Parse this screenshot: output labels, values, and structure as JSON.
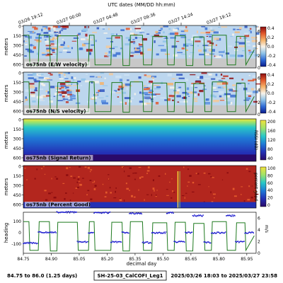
{
  "header": {
    "top_axis_label": "UTC dates (MM/DD hh:mm)"
  },
  "top_axis_ticks": [
    "03/26 19:12",
    "03/27 00:00",
    "03/27 04:48",
    "03/27 09:36",
    "03/27 14:24",
    "03/27 19:12"
  ],
  "footer": {
    "left": "84.75 to 86.0 (1.25 days)",
    "center": "SH-25-03_CalCOFI_Leg1",
    "right": "2025/03/26 18:03 to 2025/03/27 23:58"
  },
  "x_axis": {
    "label": "decimal day",
    "ticks": [
      "84.75",
      "84.90",
      "85.05",
      "85.20",
      "85.35",
      "85.50",
      "85.65",
      "85.80",
      "85.95"
    ]
  },
  "colors": {
    "speed_line": "#1f7a1f",
    "heading_dots": "#1f1fd0",
    "heading_label": "#1f1fd0",
    "speed_label": "#1f7a1f",
    "footer_purple": "#7a1f7a",
    "nodata_gray": "#c8c8c8"
  },
  "panels": [
    {
      "label": "os75nb (E/W velocity)",
      "ylabel": "meters",
      "yticks": [
        "0",
        "150",
        "300",
        "450",
        "600"
      ],
      "speed_label": "m/s",
      "speed_ticks": [
        "0",
        "2",
        "4",
        "6"
      ],
      "colorbar_ticks": [
        "0.4",
        "0.2",
        "0.0",
        "-0.2",
        "-0.4"
      ],
      "colorbar_label": ""
    },
    {
      "label": "os75nb (N/S velocity)",
      "ylabel": "meters",
      "yticks": [
        "0",
        "150",
        "300",
        "450",
        "600"
      ],
      "speed_label": "m/s",
      "speed_ticks": [
        "0",
        "2",
        "4",
        "6"
      ],
      "colorbar_ticks": [
        "0.4",
        "0.2",
        "0.0",
        "-0.2",
        "-0.4"
      ],
      "colorbar_label": ""
    },
    {
      "label": "os75nb (Signal Return)",
      "ylabel": "meters",
      "yticks": [
        "0",
        "150",
        "300",
        "450",
        "600"
      ],
      "speed_label": "",
      "speed_ticks": [],
      "colorbar_ticks": [
        "200",
        "160",
        "120",
        "80",
        "40"
      ],
      "colorbar_label": "RSSI (dB)"
    },
    {
      "label": "os75nb (Percent Good)",
      "ylabel": "meters",
      "yticks": [
        "0",
        "150",
        "300",
        "450",
        "600"
      ],
      "speed_label": "",
      "speed_ticks": [],
      "colorbar_ticks": [
        "100",
        "80",
        "60",
        "40",
        "20",
        "0"
      ],
      "colorbar_label": "percent good"
    }
  ],
  "heading_panel": {
    "ylabel": "heading",
    "yticks": [
      "100",
      "0",
      "-100"
    ],
    "speed_label": "m/s",
    "speed_ticks": [
      "0",
      "2",
      "4",
      "6"
    ]
  },
  "chart_data": {
    "type": "line",
    "title": "",
    "xlabel": "decimal day",
    "xlim": [
      84.75,
      86.0
    ],
    "ylim_speed": [
      0,
      7
    ],
    "ylim_heading": [
      -180,
      180
    ],
    "series": [
      {
        "name": "m/s",
        "x": [
          84.75,
          84.78,
          84.785,
          84.83,
          84.835,
          84.89,
          84.895,
          84.93,
          84.935,
          85.04,
          85.045,
          85.1,
          85.105,
          85.13,
          85.135,
          85.22,
          85.225,
          85.28,
          85.285,
          85.32,
          85.325,
          85.39,
          85.395,
          85.44,
          85.445,
          85.52,
          85.525,
          85.56,
          85.565,
          85.62,
          85.625,
          85.66,
          85.665,
          85.72,
          85.725,
          85.76,
          85.765,
          85.84,
          85.845,
          85.89,
          85.895,
          85.94,
          85.945,
          85.99
        ],
        "values": [
          5.4,
          5.4,
          0.5,
          0.5,
          5.4,
          5.4,
          0.4,
          0.4,
          5.3,
          5.3,
          0.5,
          0.5,
          5.4,
          5.4,
          0.5,
          0.5,
          5.3,
          5.3,
          0.4,
          0.4,
          5.4,
          5.4,
          0.5,
          0.5,
          5.2,
          5.2,
          0.5,
          0.5,
          5.3,
          5.3,
          0.4,
          0.4,
          5.1,
          5.1,
          0.5,
          0.5,
          5.4,
          5.4,
          0.5,
          0.5,
          5.2,
          5.2,
          0.5,
          3.0
        ]
      },
      {
        "name": "heading",
        "x": [
          84.75,
          84.78,
          84.83,
          84.89,
          84.93,
          85.04,
          85.1,
          85.13,
          85.22,
          85.28,
          85.32,
          85.39,
          85.44,
          85.52,
          85.56,
          85.62,
          85.66,
          85.72,
          85.76,
          85.84,
          85.89,
          85.94,
          85.99
        ],
        "values": [
          -90,
          -90,
          5,
          5,
          180,
          -80,
          0,
          175,
          -80,
          0,
          170,
          -85,
          0,
          175,
          -80,
          0,
          150,
          -85,
          0,
          150,
          -80,
          0,
          5
        ]
      }
    ]
  }
}
